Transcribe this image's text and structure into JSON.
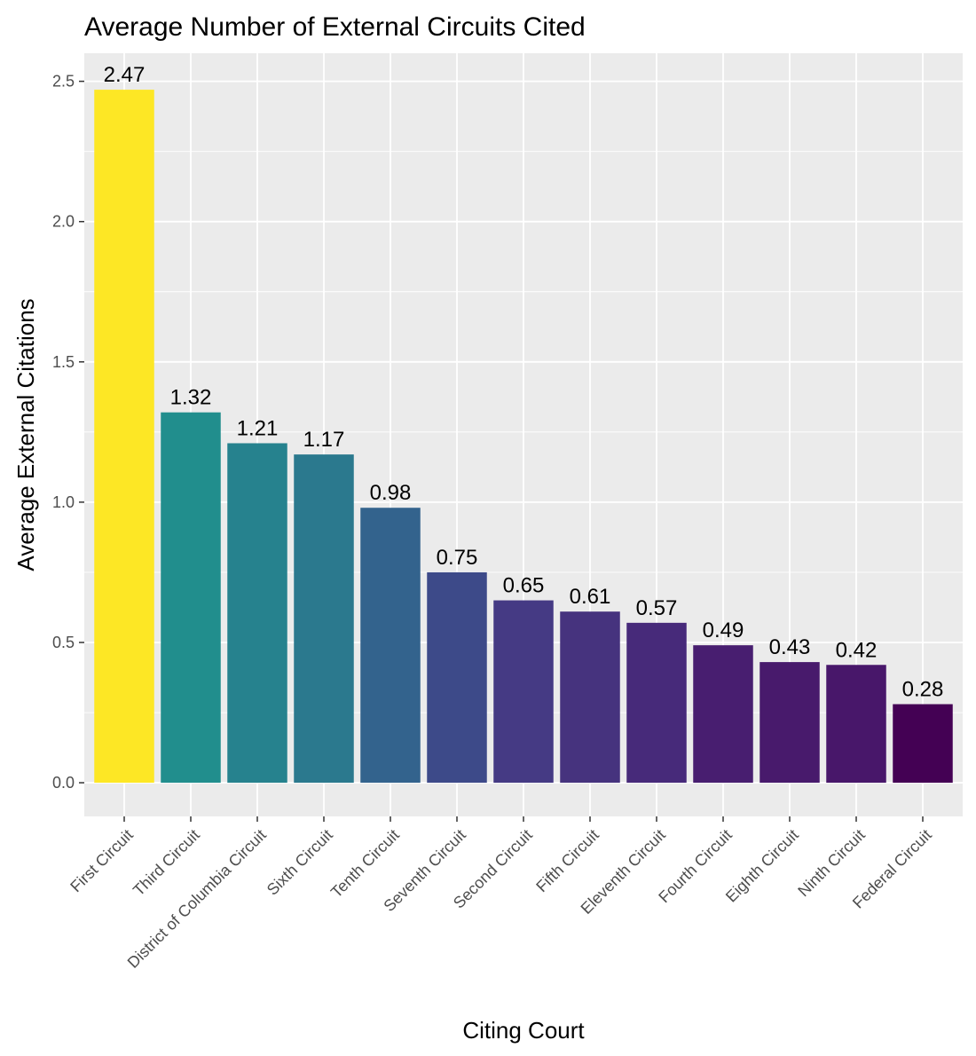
{
  "chart_data": {
    "type": "bar",
    "title": "Average Number of External Circuits Cited",
    "xlabel": "Citing Court",
    "ylabel": "Average External Citations",
    "ylim": [
      -0.12,
      2.6
    ],
    "yticks": [
      0.0,
      0.5,
      1.0,
      1.5,
      2.0,
      2.5
    ],
    "ytick_labels": [
      "0.0",
      "0.5",
      "1.0",
      "1.5",
      "2.0",
      "2.5"
    ],
    "categories": [
      "First Circuit",
      "Third Circuit",
      "District of Columbia Circuit",
      "Sixth Circuit",
      "Tenth Circuit",
      "Seventh Circuit",
      "Second Circuit",
      "Fifth Circuit",
      "Eleventh Circuit",
      "Fourth Circuit",
      "Eighth Circuit",
      "Ninth Circuit",
      "Federal Circuit"
    ],
    "values": [
      2.47,
      1.32,
      1.21,
      1.17,
      0.98,
      0.75,
      0.65,
      0.61,
      0.57,
      0.49,
      0.43,
      0.42,
      0.28
    ],
    "value_labels": [
      "2.47",
      "1.32",
      "1.21",
      "1.17",
      "0.98",
      "0.75",
      "0.65",
      "0.61",
      "0.57",
      "0.49",
      "0.43",
      "0.42",
      "0.28"
    ],
    "colors": [
      "#FDE725",
      "#218E8D",
      "#26828E",
      "#2B798E",
      "#33638D",
      "#3D4A89",
      "#453A84",
      "#46337E",
      "#472A7A",
      "#481E70",
      "#481A6C",
      "#48176A",
      "#440154"
    ],
    "grid": true,
    "legend": "none"
  }
}
